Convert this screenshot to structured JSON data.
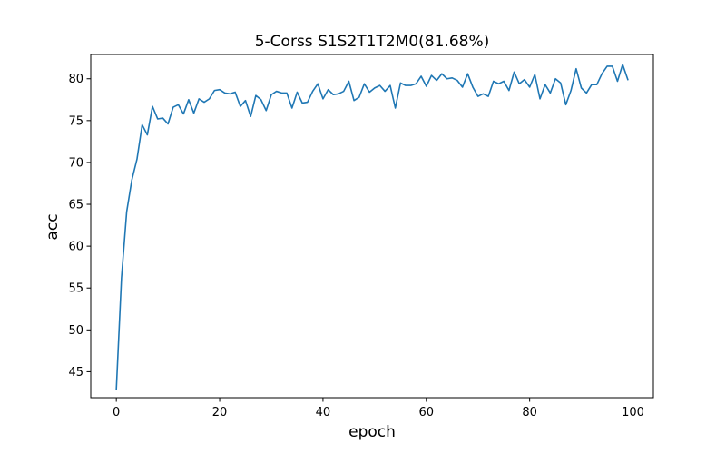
{
  "chart_data": {
    "type": "line",
    "title": "5-Corss S1S2T1T2M0(81.68%)",
    "xlabel": "epoch",
    "ylabel": "acc",
    "xlim": [
      -4.95,
      103.95
    ],
    "ylim": [
      41.9,
      82.9
    ],
    "xticks": [
      0,
      20,
      40,
      60,
      80,
      100
    ],
    "yticks": [
      45,
      50,
      55,
      60,
      65,
      70,
      75,
      80
    ],
    "grid": false,
    "line_color": "#1f77b4",
    "series": [
      {
        "x": [
          0,
          1,
          2,
          3,
          4,
          5,
          6,
          7,
          8,
          9,
          10,
          11,
          12,
          13,
          14,
          15,
          16,
          17,
          18,
          19,
          20,
          21,
          22,
          23,
          24,
          25,
          26,
          27,
          28,
          29,
          30,
          31,
          32,
          33,
          34,
          35,
          36,
          37,
          38,
          39,
          40,
          41,
          42,
          43,
          44,
          45,
          46,
          47,
          48,
          49,
          50,
          51,
          52,
          53,
          54,
          55,
          56,
          57,
          58,
          59,
          60,
          61,
          62,
          63,
          64,
          65,
          66,
          67,
          68,
          69,
          70,
          71,
          72,
          73,
          74,
          75,
          76,
          77,
          78,
          79,
          80,
          81,
          82,
          83,
          84,
          85,
          86,
          87,
          88,
          89,
          90,
          91,
          92,
          93,
          94,
          95,
          96,
          97,
          98,
          99
        ],
        "y": [
          42.9,
          56.2,
          64.1,
          67.9,
          70.4,
          74.5,
          73.3,
          76.7,
          75.2,
          75.3,
          74.6,
          76.6,
          76.9,
          75.8,
          77.5,
          75.9,
          77.6,
          77.2,
          77.6,
          78.6,
          78.7,
          78.3,
          78.2,
          78.4,
          76.7,
          77.4,
          75.5,
          78.0,
          77.5,
          76.2,
          78.1,
          78.5,
          78.3,
          78.3,
          76.5,
          78.4,
          77.1,
          77.2,
          78.5,
          79.4,
          77.6,
          78.7,
          78.1,
          78.2,
          78.5,
          79.7,
          77.4,
          77.8,
          79.4,
          78.4,
          78.9,
          79.2,
          78.5,
          79.2,
          76.5,
          79.5,
          79.2,
          79.2,
          79.4,
          80.3,
          79.1,
          80.4,
          79.8,
          80.6,
          80.0,
          80.1,
          79.8,
          79.0,
          80.6,
          79.0,
          77.9,
          78.2,
          77.9,
          79.7,
          79.4,
          79.7,
          78.6,
          80.8,
          79.4,
          79.9,
          79.0,
          80.5,
          77.6,
          79.3,
          78.3,
          80.0,
          79.5,
          76.9,
          78.6,
          81.2,
          78.9,
          78.3,
          79.3,
          79.3,
          80.6,
          81.5,
          81.5,
          79.7,
          81.7,
          79.9
        ]
      }
    ]
  }
}
